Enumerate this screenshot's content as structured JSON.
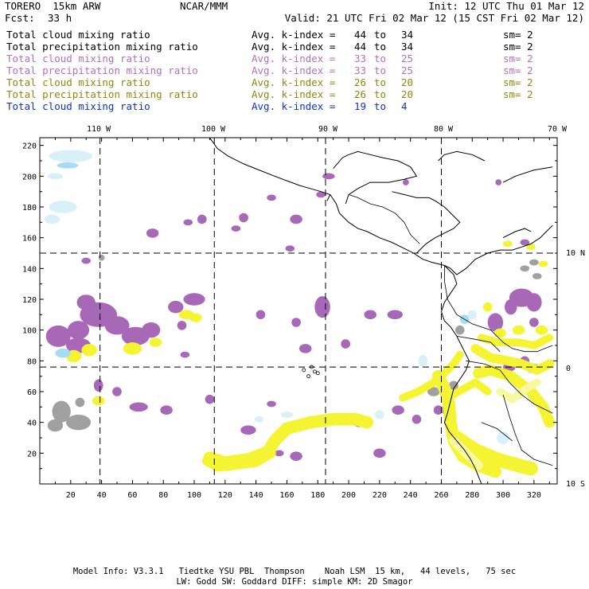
{
  "header": {
    "model": "TORERO  15km ARW",
    "org": "NCAR/MMM",
    "init": "Init: 12 UTC Thu 01 Mar 12",
    "fcst_label": "Fcst:",
    "fcst_value": "33 h",
    "valid": "Valid: 21 UTC Fri 02 Mar 12 (15 CST Fri 02 Mar 12)"
  },
  "legend": [
    {
      "field": "Total cloud mixing ratio",
      "index": "Avg. k-index =",
      "from": "44",
      "to": "to",
      "until": "34",
      "sm": "sm= 2",
      "color": "#000000"
    },
    {
      "field": "Total precipitation mixing ratio",
      "index": "Avg. k-index =",
      "from": "44",
      "to": "to",
      "until": "34",
      "sm": "sm= 2",
      "color": "#000000"
    },
    {
      "field": "Total cloud mixing ratio",
      "index": "Avg. k-index =",
      "from": "33",
      "to": "to",
      "until": "25",
      "sm": "sm= 2",
      "color": "#b070c0"
    },
    {
      "field": "Total precipitation mixing ratio",
      "index": "Avg. k-index =",
      "from": "33",
      "to": "to",
      "until": "25",
      "sm": "sm= 2",
      "color": "#b070c0"
    },
    {
      "field": "Total cloud mixing ratio",
      "index": "Avg. k-index =",
      "from": "26",
      "to": "to",
      "until": "20",
      "sm": "sm= 2",
      "color": "#8a8a10"
    },
    {
      "field": "Total precipitation mixing ratio",
      "index": "Avg. k-index =",
      "from": "26",
      "to": "to",
      "until": "20",
      "sm": "sm= 2",
      "color": "#8a8a10"
    },
    {
      "field": "Total cloud mixing ratio",
      "index": "Avg. k-index =",
      "from": "19",
      "to": "to",
      "until": "4",
      "sm": "",
      "color": "#1030d0"
    }
  ],
  "map": {
    "lon_labels": [
      "110 W",
      "100 W",
      "90 W",
      "80 W",
      "70 W"
    ],
    "lat_labels": [
      "10 N",
      "0",
      "10 S"
    ],
    "x_ticks": [
      "20",
      "40",
      "60",
      "80",
      "100",
      "120",
      "140",
      "160",
      "180",
      "200",
      "220",
      "240",
      "260",
      "280",
      "300",
      "320"
    ],
    "y_ticks": [
      "20",
      "40",
      "60",
      "80",
      "100",
      "120",
      "140",
      "160",
      "180",
      "200",
      "220"
    ],
    "x_range": [
      0,
      335
    ],
    "y_range": [
      0,
      225
    ],
    "meridian_grid_x": [
      39,
      113,
      185,
      260
    ],
    "parallel_grid_y": [
      150,
      76
    ],
    "colors": {
      "purple": "#a868b8",
      "yellow": "#f4f432",
      "light_yellow": "#f8f8a0",
      "light_blue": "#d8f0f8",
      "blue": "#a8dcf4",
      "gray": "#a0a0a0"
    }
  },
  "footer": {
    "line1": "Model Info: V3.3.1   Tiedtke YSU PBL  Thompson    Noah LSM  15 km,   44 levels,   75 sec",
    "line2": "LW: Godd SW: Goddard DIFF: simple KM: 2D Smagor"
  }
}
